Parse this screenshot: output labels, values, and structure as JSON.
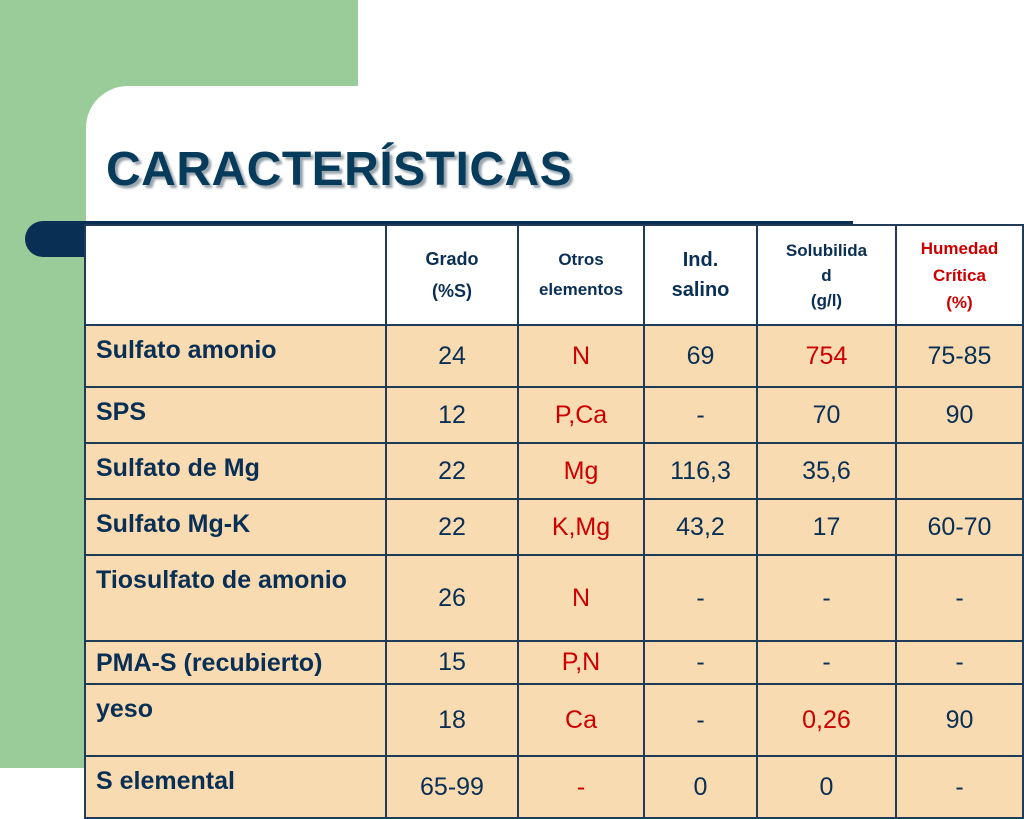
{
  "title": "CARACTERÍSTICAS",
  "headers": {
    "grado_1": "Grado",
    "grado_2": "(%S)",
    "otros_1": "Otros",
    "otros_2": "elementos",
    "ind_1": "Ind.",
    "ind_2": "salino",
    "sol_1": "Solubilida",
    "sol_2": "d",
    "sol_3": "(g/l)",
    "hum_1": "Humedad",
    "hum_2": "Crítica",
    "hum_3": "(%)"
  },
  "rows": [
    {
      "name": "Sulfato amonio",
      "grado": "24",
      "otros": "N",
      "ind": "69",
      "sol": "754",
      "hum": "75-85"
    },
    {
      "name": "SPS",
      "grado": "12",
      "otros": "P,Ca",
      "ind": "-",
      "sol": "70",
      "hum": "90"
    },
    {
      "name": "Sulfato de Mg",
      "grado": "22",
      "otros": "Mg",
      "ind": "116,3",
      "sol": "35,6",
      "hum": ""
    },
    {
      "name": "Sulfato Mg-K",
      "grado": "22",
      "otros": "K,Mg",
      "ind": "43,2",
      "sol": "17",
      "hum": "60-70"
    },
    {
      "name": "Tiosulfato de amonio",
      "grado": "26",
      "otros": "N",
      "ind": "-",
      "sol": "-",
      "hum": "-"
    },
    {
      "name": "PMA-S (recubierto)",
      "grado": "15",
      "otros": "P,N",
      "ind": "-",
      "sol": "-",
      "hum": "-"
    },
    {
      "name": "yeso",
      "grado": "18",
      "otros": "Ca",
      "ind": "-",
      "sol": "0,26",
      "hum": "90"
    },
    {
      "name": "S elemental",
      "grado": "65-99",
      "otros": "-",
      "ind": "0",
      "sol": "0",
      "hum": "-"
    }
  ],
  "colors": {
    "green_block": "#99cc99",
    "title": "#073b5b",
    "bar": "#0a2f54",
    "cell_fill": "#f9dbb2",
    "red_text": "#cc0000"
  }
}
